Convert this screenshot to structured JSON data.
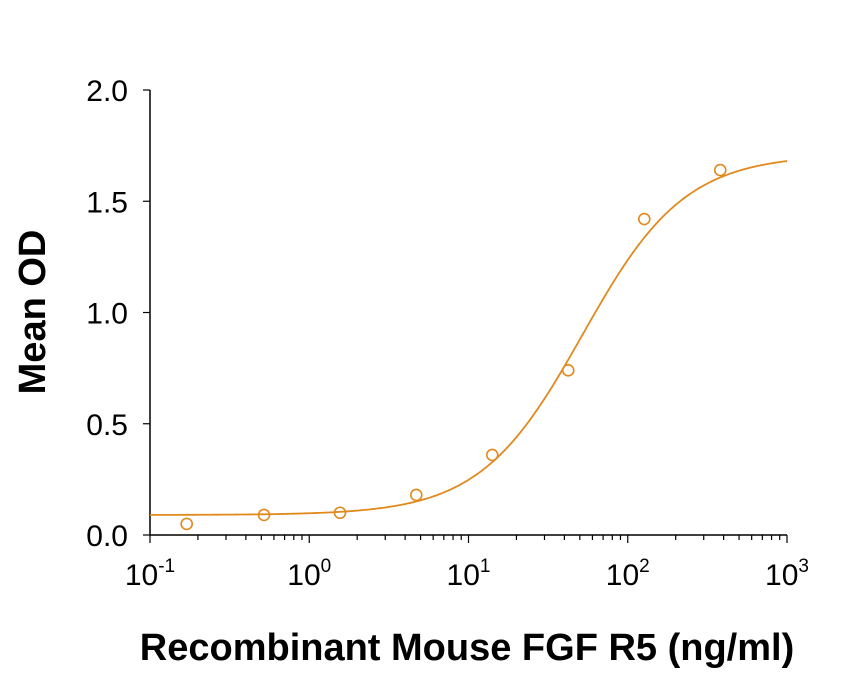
{
  "chart_data": {
    "type": "scatter",
    "title": "",
    "xlabel": "Recombinant Mouse FGF R5 (ng/ml)",
    "ylabel": "Mean OD",
    "xscale": "log",
    "xlim": [
      0.1,
      1000
    ],
    "ylim": [
      0,
      2.0
    ],
    "x_ticks": [
      {
        "base": "10",
        "exp": "-1",
        "value": 0.1
      },
      {
        "base": "10",
        "exp": "0",
        "value": 1
      },
      {
        "base": "10",
        "exp": "1",
        "value": 10
      },
      {
        "base": "10",
        "exp": "2",
        "value": 100
      },
      {
        "base": "10",
        "exp": "3",
        "value": 1000
      }
    ],
    "y_ticks": [
      {
        "label": "0.0",
        "value": 0
      },
      {
        "label": "0.5",
        "value": 0.5
      },
      {
        "label": "1.0",
        "value": 1.0
      },
      {
        "label": "1.5",
        "value": 1.5
      },
      {
        "label": "2.0",
        "value": 2.0
      }
    ],
    "grid": false,
    "legend": "none",
    "color": "#E08A1E",
    "series": [
      {
        "x": [
          0.17,
          0.52,
          1.56,
          4.7,
          14.1,
          42.3,
          127,
          381
        ],
        "y": [
          0.05,
          0.09,
          0.1,
          0.18,
          0.36,
          0.74,
          1.42,
          1.64
        ]
      }
    ],
    "fit": {
      "model": "4PL",
      "bottom": 0.09,
      "top": 1.71,
      "ec50": 52,
      "hill": 1.35
    }
  }
}
